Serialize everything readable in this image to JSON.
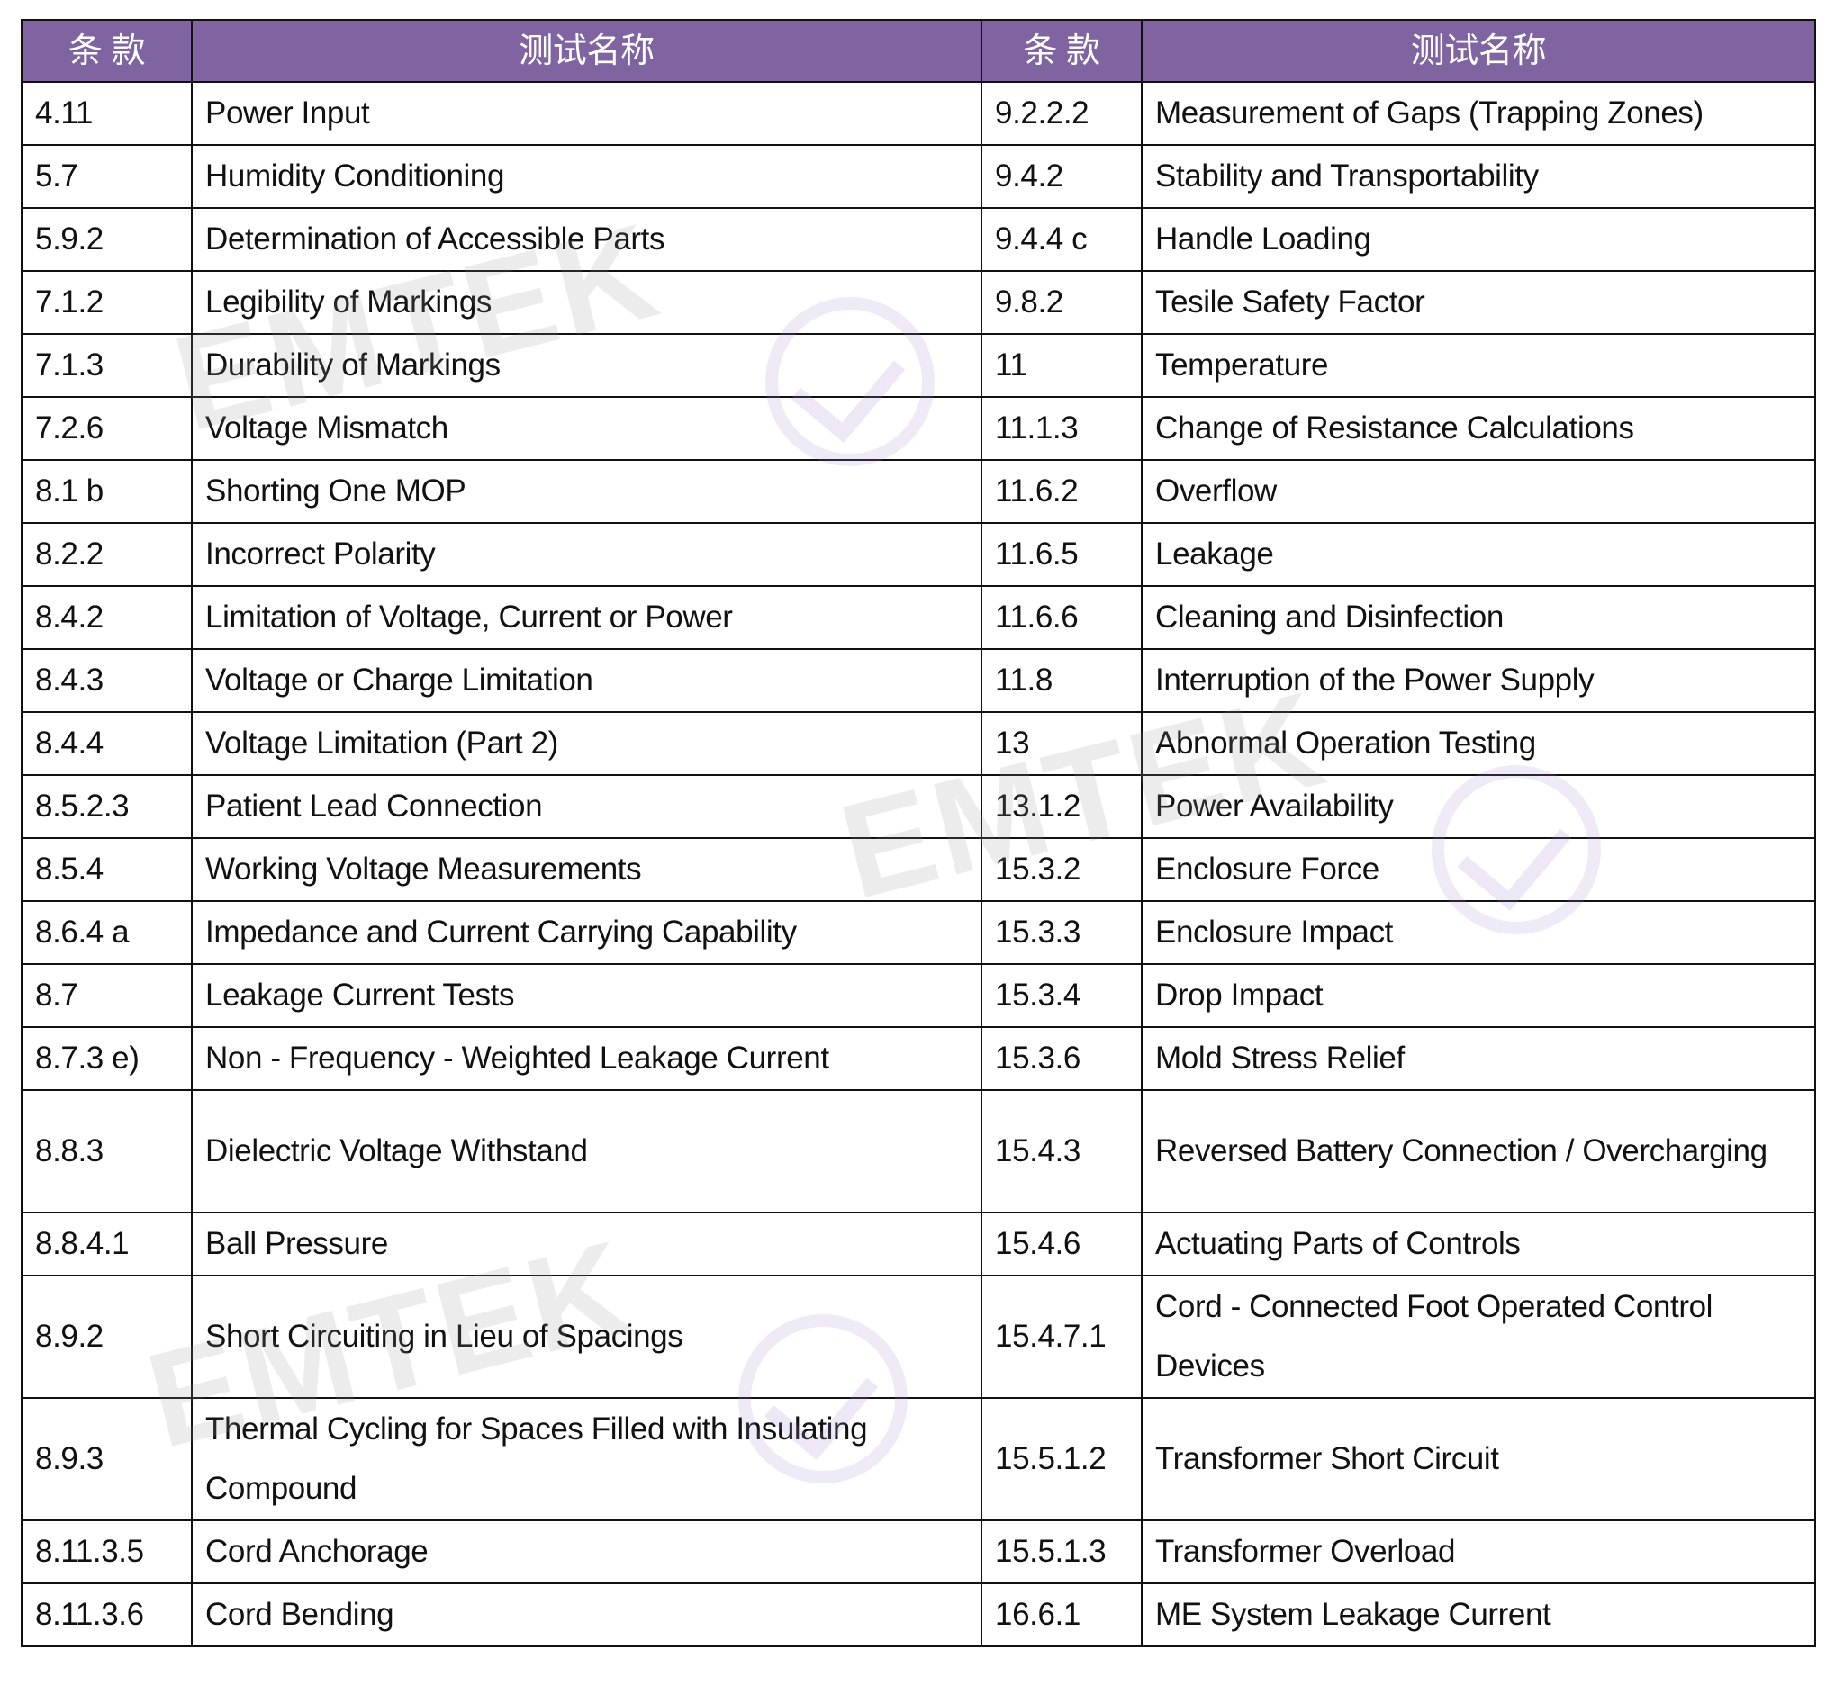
{
  "header": {
    "clause": "条 款",
    "test_name": "测试名称",
    "clause2": "条 款",
    "test_name2": "测试名称"
  },
  "colors": {
    "header_bg": "#8064a2",
    "header_text": "#ffffff",
    "border": "#111111"
  },
  "watermark": {
    "text": "EMTEK"
  },
  "rows": [
    {
      "c1": "4.11",
      "n1": "Power Input",
      "c2": "9.2.2.2",
      "n2": "Measurement of Gaps (Trapping Zones)"
    },
    {
      "c1": "5.7",
      "n1": "Humidity Conditioning",
      "c2": "9.4.2",
      "n2": "Stability and Transportability"
    },
    {
      "c1": "5.9.2",
      "n1": "Determination of Accessible Parts",
      "c2": "9.4.4 c",
      "n2": "Handle Loading"
    },
    {
      "c1": "7.1.2",
      "n1": "Legibility of Markings",
      "c2": "9.8.2",
      "n2": "Tesile Safety Factor"
    },
    {
      "c1": "7.1.3",
      "n1": "Durability of Markings",
      "c2": "11",
      "n2": "Temperature"
    },
    {
      "c1": "7.2.6",
      "n1": "Voltage Mismatch",
      "c2": "11.1.3",
      "n2": "Change of Resistance Calculations"
    },
    {
      "c1": "8.1 b",
      "n1": "Shorting One MOP",
      "c2": "11.6.2",
      "n2": "Overflow"
    },
    {
      "c1": "8.2.2",
      "n1": "Incorrect Polarity",
      "c2": "11.6.5",
      "n2": "Leakage"
    },
    {
      "c1": "8.4.2",
      "n1": "Limitation of Voltage, Current or Power",
      "c2": "11.6.6",
      "n2": "Cleaning and Disinfection"
    },
    {
      "c1": "8.4.3",
      "n1": "Voltage or Charge Limitation",
      "c2": "11.8",
      "n2": "Interruption of the Power Supply"
    },
    {
      "c1": "8.4.4",
      "n1": "Voltage Limitation (Part 2)",
      "c2": "13",
      "n2": "Abnormal Operation Testing"
    },
    {
      "c1": "8.5.2.3",
      "n1": "Patient Lead Connection",
      "c2": "13.1.2",
      "n2": "Power Availability"
    },
    {
      "c1": "8.5.4",
      "n1": "Working Voltage Measurements",
      "c2": "15.3.2",
      "n2": "Enclosure Force"
    },
    {
      "c1": "8.6.4 a",
      "n1": "Impedance and Current Carrying Capability",
      "c2": "15.3.3",
      "n2": "Enclosure Impact"
    },
    {
      "c1": "8.7",
      "n1": "Leakage Current Tests",
      "c2": "15.3.4",
      "n2": "Drop Impact"
    },
    {
      "c1": "8.7.3 e)",
      "n1": "Non - Frequency - Weighted Leakage Current",
      "c2": "15.3.6",
      "n2": "Mold Stress Relief"
    },
    {
      "c1": "8.8.3",
      "n1": "Dielectric Voltage Withstand",
      "c2": "15.4.3",
      "n2": "Reversed Battery Connection / Overcharging"
    },
    {
      "c1": "8.8.4.1",
      "n1": "Ball Pressure",
      "c2": "15.4.6",
      "n2": "Actuating Parts of Controls"
    },
    {
      "c1": "8.9.2",
      "n1": "Short Circuiting in Lieu of Spacings",
      "c2": "15.4.7.1",
      "n2": "Cord - Connected Foot Operated Control Devices"
    },
    {
      "c1": "8.9.3",
      "n1": "Thermal Cycling for Spaces Filled with Insulating Compound",
      "c2": "15.5.1.2",
      "n2": "Transformer Short Circuit"
    },
    {
      "c1": "8.11.3.5",
      "n1": "Cord Anchorage",
      "c2": "15.5.1.3",
      "n2": "Transformer Overload"
    },
    {
      "c1": "8.11.3.6",
      "n1": "Cord Bending",
      "c2": "16.6.1",
      "n2": "ME System Leakage Current"
    }
  ]
}
